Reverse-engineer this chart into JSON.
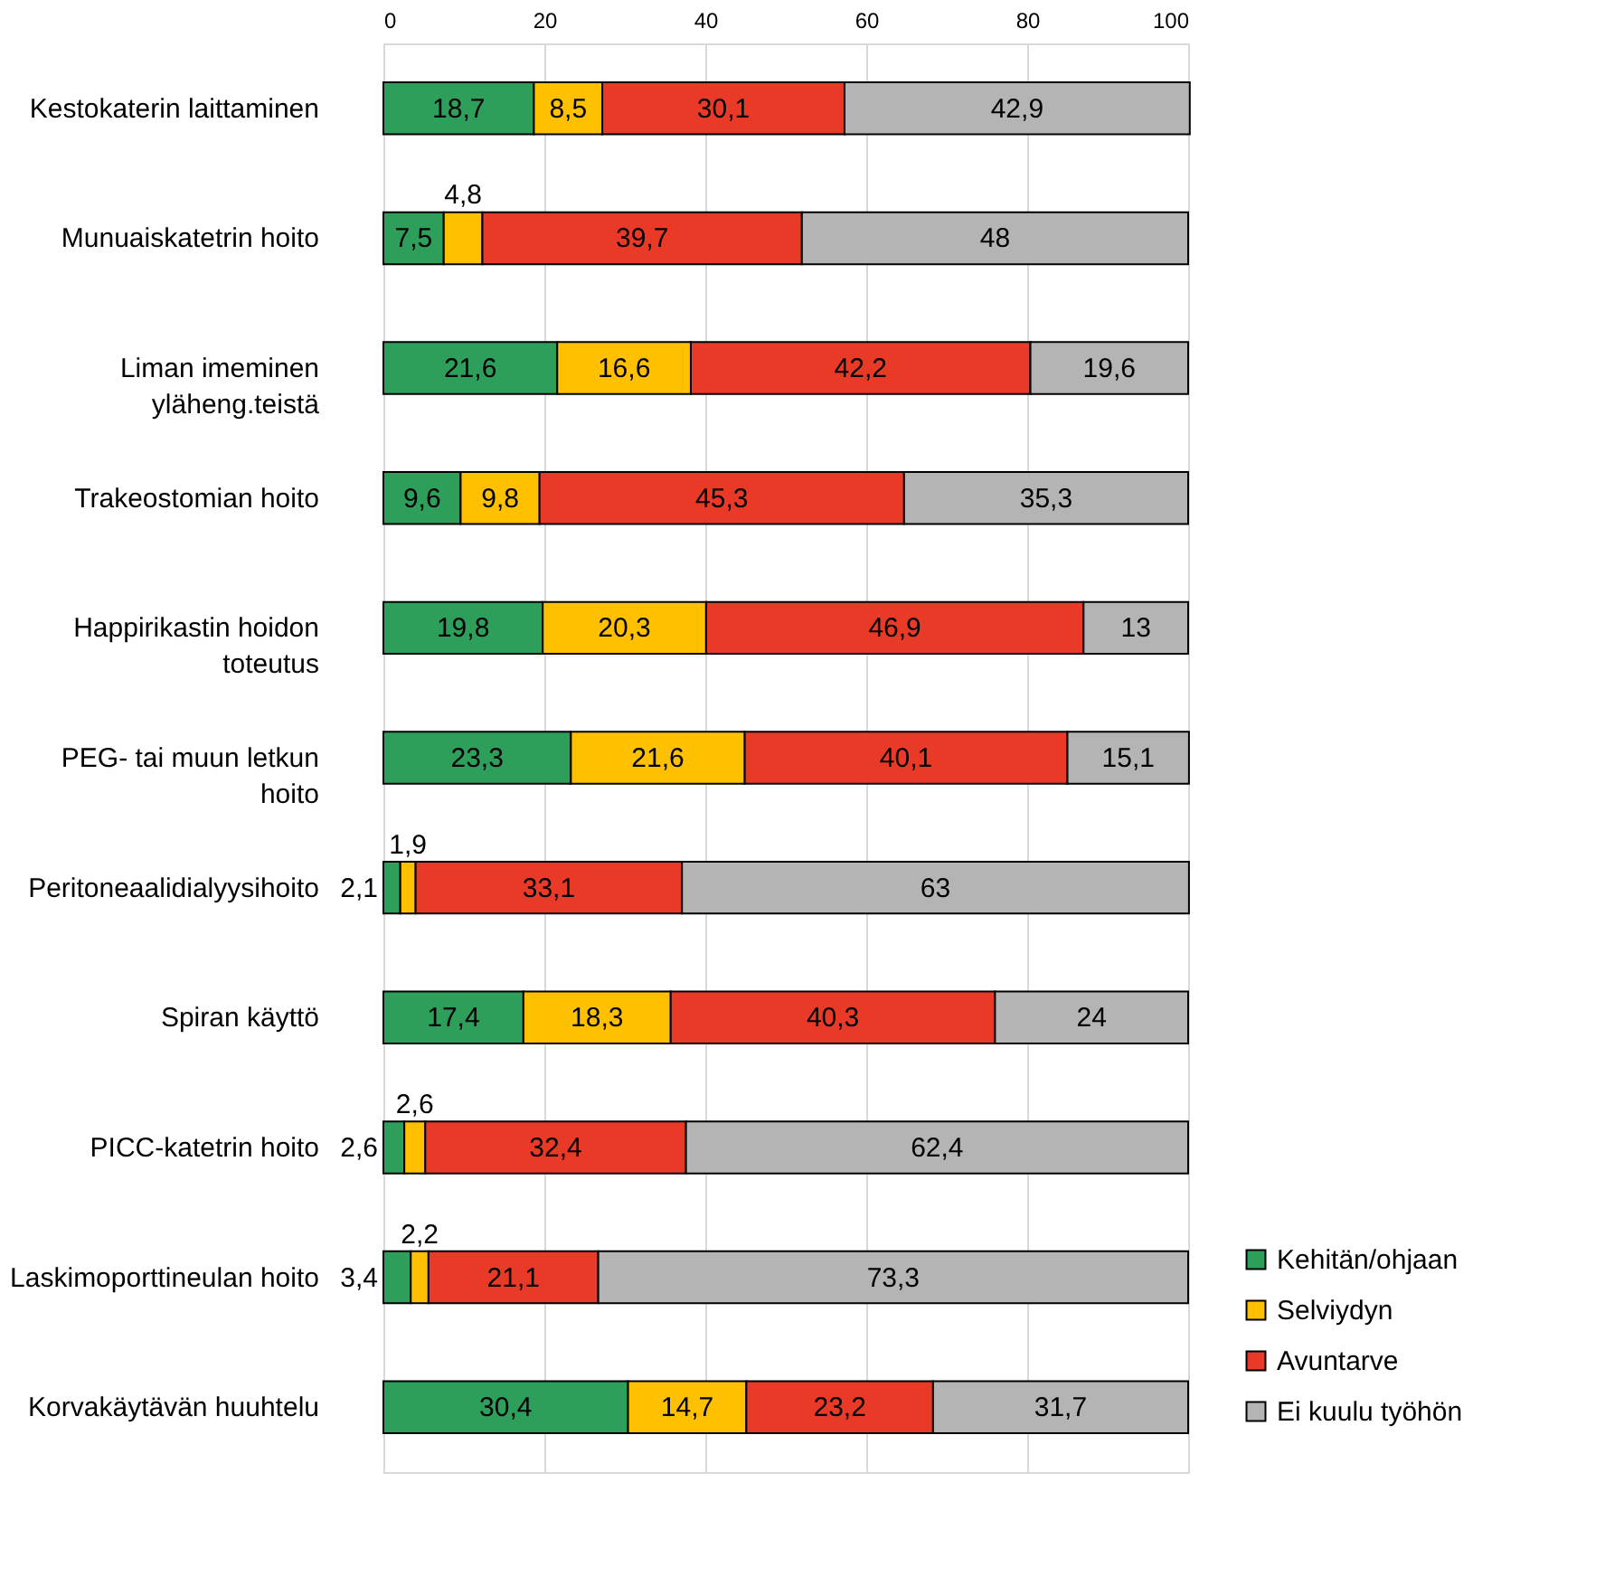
{
  "chart_data": {
    "type": "bar",
    "orientation": "horizontal",
    "stacked": true,
    "categories": [
      "Kestokaterin laittaminen",
      "Munuaiskatetrin hoito",
      "Liman imeminen\nyläheng.teistä",
      "Trakeostomian hoito",
      "Happirikastin hoidon\ntoteutus",
      "PEG- tai muun letkun\nhoito",
      "Peritoneaalidialyysihoito",
      "Spiran käyttö",
      "PICC-katetrin hoito",
      "Laskimoporttineulan hoito",
      "Korvakäytävän huuhtelu"
    ],
    "series": [
      {
        "name": "Kehitän/ohjaan",
        "color": "#2e9e5b",
        "values": [
          18.7,
          7.5,
          21.6,
          9.6,
          19.8,
          23.3,
          2.1,
          17.4,
          2.6,
          3.4,
          30.4
        ],
        "value_labels": [
          "18,7",
          "7,5",
          "21,6",
          "9,6",
          "19,8",
          "23,3",
          "2,1",
          "17,4",
          "2,6",
          "3,4",
          "30,4"
        ]
      },
      {
        "name": "Selviydyn",
        "color": "#ffc000",
        "values": [
          8.5,
          4.8,
          16.6,
          9.8,
          20.3,
          21.6,
          1.9,
          18.3,
          2.6,
          2.2,
          14.7
        ],
        "value_labels": [
          "8,5",
          "4,8",
          "16,6",
          "9,8",
          "20,3",
          "21,6",
          "1,9",
          "18,3",
          "2,6",
          "2,2",
          "14,7"
        ]
      },
      {
        "name": "Avuntarve",
        "color": "#e83a27",
        "values": [
          30.1,
          39.7,
          42.2,
          45.3,
          46.9,
          40.1,
          33.1,
          40.3,
          32.4,
          21.1,
          23.2
        ],
        "value_labels": [
          "30,1",
          "39,7",
          "42,2",
          "45,3",
          "46,9",
          "40,1",
          "33,1",
          "40,3",
          "32,4",
          "21,1",
          "23,2"
        ]
      },
      {
        "name": "Ei kuulu työhön",
        "color": "#b4b4b4",
        "values": [
          42.9,
          48,
          19.6,
          35.3,
          13,
          15.1,
          63,
          24,
          62.4,
          73.3,
          31.7
        ],
        "value_labels": [
          "42,9",
          "48",
          "19,6",
          "35,3",
          "13",
          "15,1",
          "63",
          "24",
          "62,4",
          "73,3",
          "31,7"
        ]
      }
    ],
    "xlim": [
      0,
      100
    ],
    "xticks": [
      0,
      20,
      40,
      60,
      80,
      100
    ],
    "grid": "x",
    "legend": "bottom right"
  }
}
